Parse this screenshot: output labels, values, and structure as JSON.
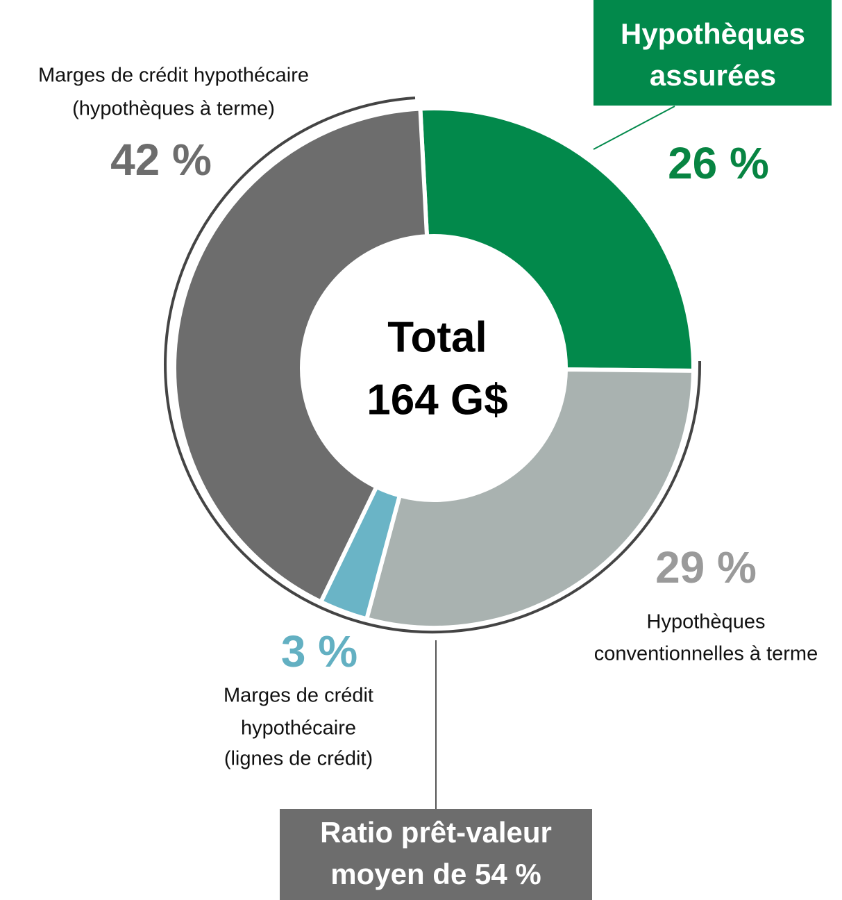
{
  "chart_data": {
    "type": "donut",
    "center_label": [
      "Total",
      "164 G$"
    ],
    "categories": [
      [
        "Hypothèques",
        "assurées"
      ],
      [
        "Hypothèques",
        "conventionnelles à terme"
      ],
      [
        "Marges de crédit",
        "hypothécaire",
        "(lignes de crédit)"
      ],
      [
        "Marges de crédit hypothécaire",
        "(hypothèques à terme)"
      ]
    ],
    "values": [
      26,
      29,
      3,
      42
    ],
    "value_labels": [
      "26 %",
      "29 %",
      "3 %",
      "42 %"
    ],
    "colors": [
      "#02894b",
      "#a9b2b0",
      "#6ab4c6",
      "#6d6d6d"
    ],
    "label_colors": [
      "#078442",
      "#9a9a9a",
      "#63b0c2",
      "#6d6d6d"
    ],
    "annotation": [
      "Ratio prêt-valeur",
      "moyen de 54 %"
    ]
  }
}
